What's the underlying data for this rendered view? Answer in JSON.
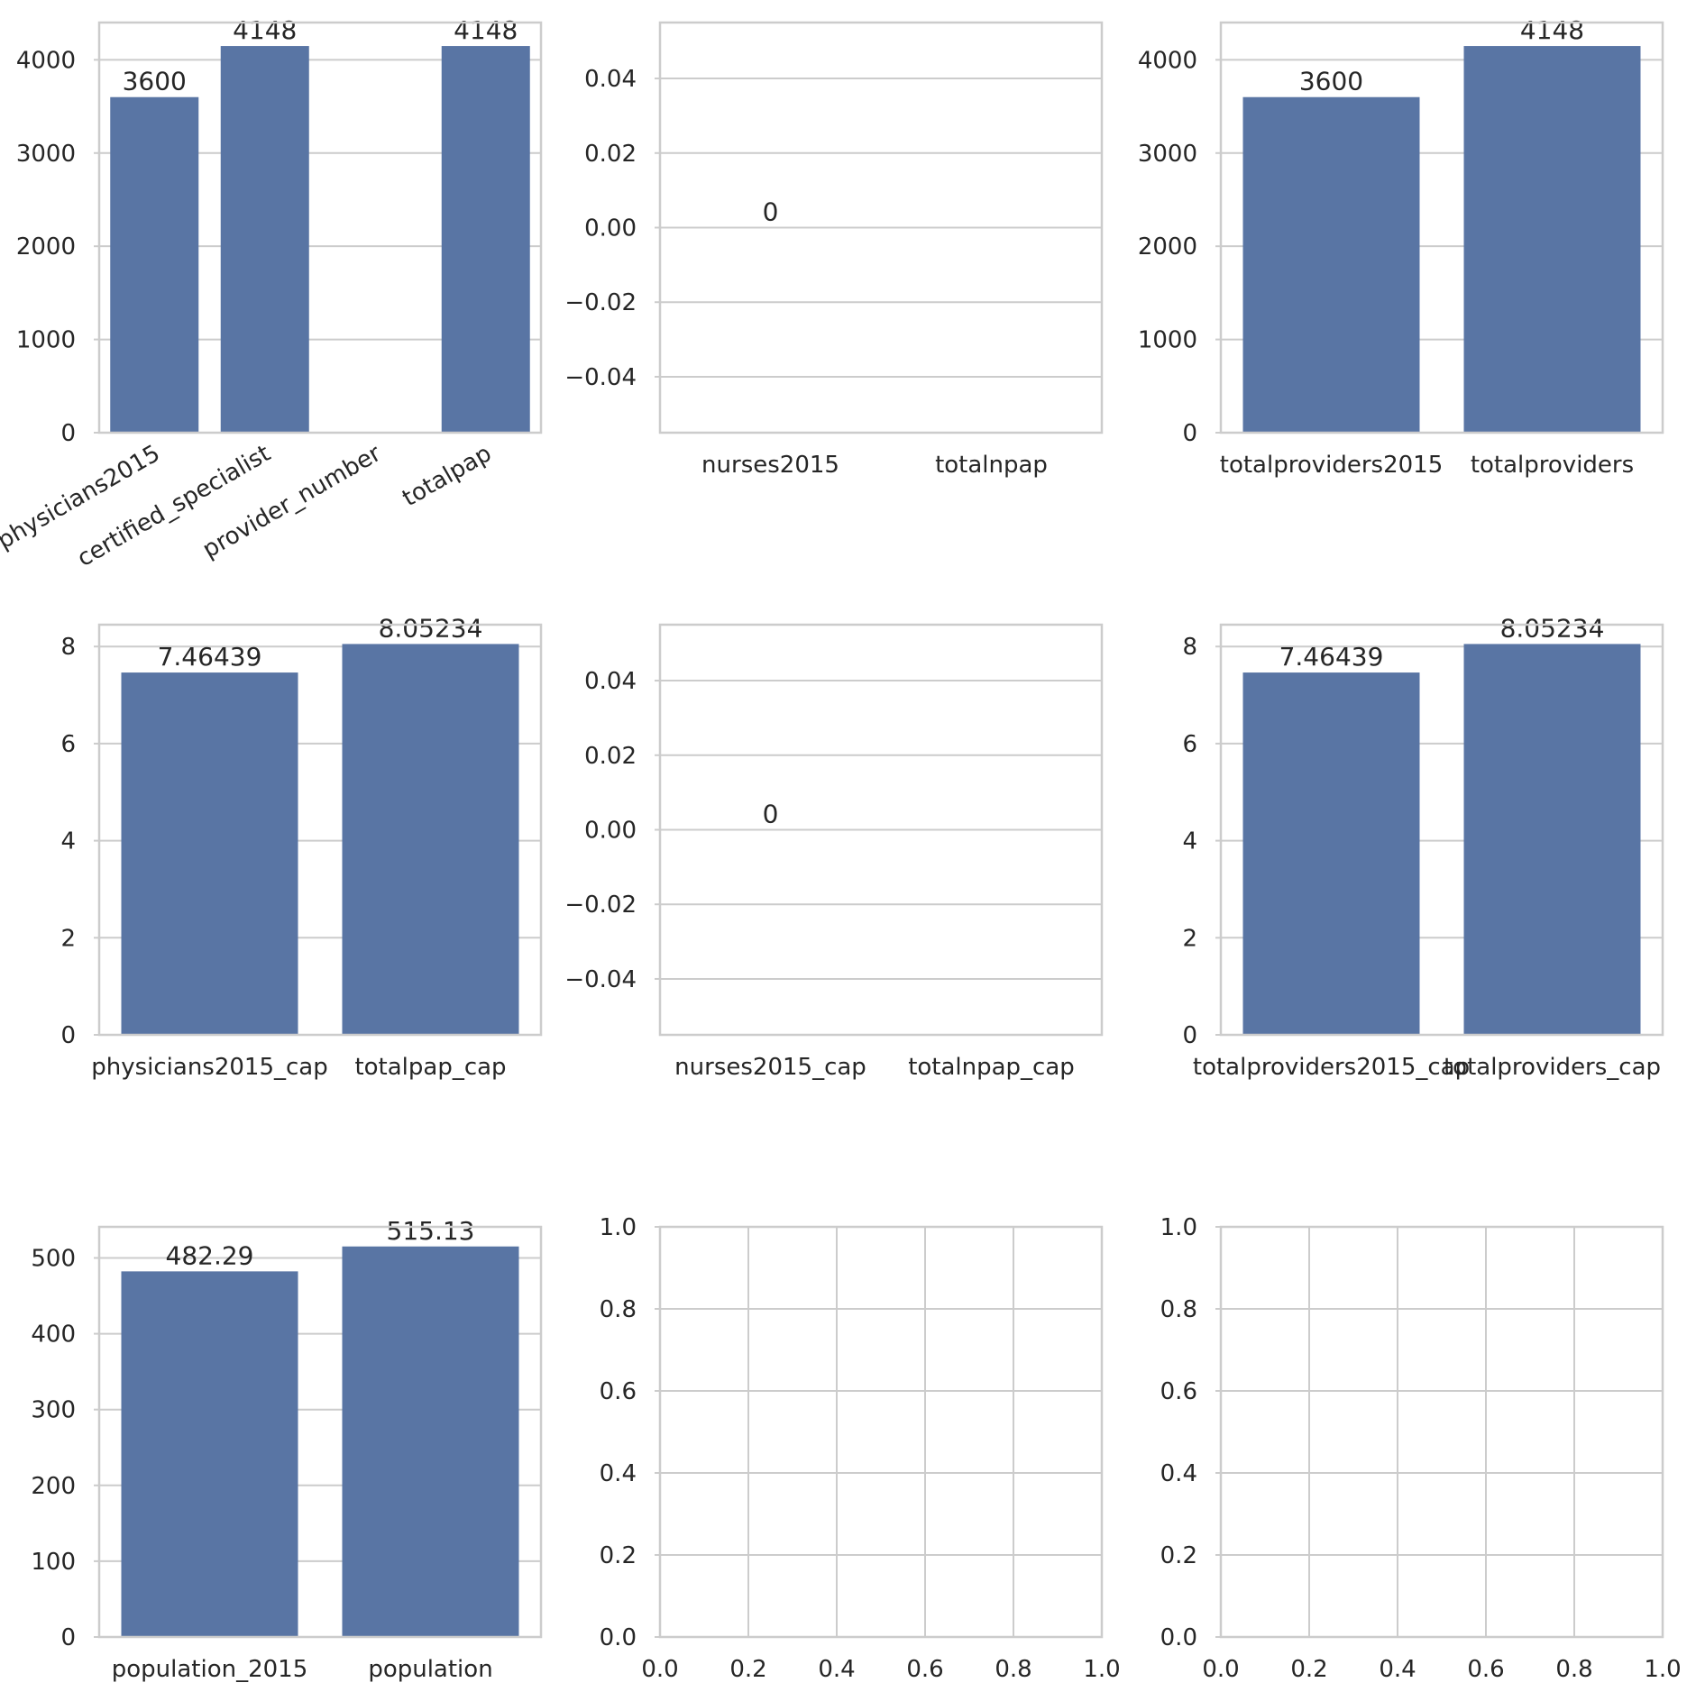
{
  "chart_data": [
    {
      "type": "bar",
      "categories": [
        "physicians2015",
        "certified_specialist",
        "provider_number",
        "totalpap"
      ],
      "values": [
        3600,
        4148,
        null,
        4148
      ],
      "value_labels": [
        "3600",
        "4148",
        "",
        "4148"
      ],
      "ylim": [
        0,
        4400
      ],
      "yticks": [
        0,
        1000,
        2000,
        3000,
        4000
      ],
      "ytick_labels": [
        "0",
        "1000",
        "2000",
        "3000",
        "4000"
      ],
      "xtick_rotation": 30,
      "grid": "horizontal",
      "bar_color": "#5975a4"
    },
    {
      "type": "bar",
      "categories": [
        "nurses2015",
        "totalnpap"
      ],
      "values": [
        0,
        null
      ],
      "value_labels": [
        "0",
        ""
      ],
      "ylim": [
        -0.055,
        0.055
      ],
      "yticks": [
        -0.04,
        -0.02,
        0.0,
        0.02,
        0.04
      ],
      "ytick_labels": [
        "−0.04",
        "−0.02",
        "0.00",
        "0.02",
        "0.04"
      ],
      "grid": "horizontal",
      "bar_color": "#5975a4"
    },
    {
      "type": "bar",
      "categories": [
        "totalproviders2015",
        "totalproviders"
      ],
      "values": [
        3600,
        4148
      ],
      "value_labels": [
        "3600",
        "4148"
      ],
      "ylim": [
        0,
        4400
      ],
      "yticks": [
        0,
        1000,
        2000,
        3000,
        4000
      ],
      "ytick_labels": [
        "0",
        "1000",
        "2000",
        "3000",
        "4000"
      ],
      "grid": "horizontal",
      "bar_color": "#5975a4"
    },
    {
      "type": "bar",
      "categories": [
        "physicians2015_cap",
        "totalpap_cap"
      ],
      "values": [
        7.46439,
        8.05234
      ],
      "value_labels": [
        "7.46439",
        "8.05234"
      ],
      "ylim": [
        0,
        8.45
      ],
      "yticks": [
        0,
        2,
        4,
        6,
        8
      ],
      "ytick_labels": [
        "0",
        "2",
        "4",
        "6",
        "8"
      ],
      "grid": "horizontal",
      "bar_color": "#5975a4"
    },
    {
      "type": "bar",
      "categories": [
        "nurses2015_cap",
        "totalnpap_cap"
      ],
      "values": [
        0,
        null
      ],
      "value_labels": [
        "0",
        ""
      ],
      "ylim": [
        -0.055,
        0.055
      ],
      "yticks": [
        -0.04,
        -0.02,
        0.0,
        0.02,
        0.04
      ],
      "ytick_labels": [
        "−0.04",
        "−0.02",
        "0.00",
        "0.02",
        "0.04"
      ],
      "grid": "horizontal",
      "bar_color": "#5975a4"
    },
    {
      "type": "bar",
      "categories": [
        "totalproviders2015_cap",
        "totalproviders_cap"
      ],
      "values": [
        7.46439,
        8.05234
      ],
      "value_labels": [
        "7.46439",
        "8.05234"
      ],
      "ylim": [
        0,
        8.45
      ],
      "yticks": [
        0,
        2,
        4,
        6,
        8
      ],
      "ytick_labels": [
        "0",
        "2",
        "4",
        "6",
        "8"
      ],
      "grid": "horizontal",
      "bar_color": "#5975a4"
    },
    {
      "type": "bar",
      "categories": [
        "population_2015",
        "population"
      ],
      "values": [
        482.29,
        515.13
      ],
      "value_labels": [
        "482.29",
        "515.13"
      ],
      "ylim": [
        0,
        541
      ],
      "yticks": [
        0,
        100,
        200,
        300,
        400,
        500
      ],
      "ytick_labels": [
        "0",
        "100",
        "200",
        "300",
        "400",
        "500"
      ],
      "grid": "horizontal",
      "bar_color": "#5975a4"
    },
    {
      "type": "empty",
      "xlim": [
        0,
        1
      ],
      "ylim": [
        0,
        1
      ],
      "xticks": [
        0,
        0.2,
        0.4,
        0.6,
        0.8,
        1.0
      ],
      "xtick_labels": [
        "0.0",
        "0.2",
        "0.4",
        "0.6",
        "0.8",
        "1.0"
      ],
      "yticks": [
        0,
        0.2,
        0.4,
        0.6,
        0.8,
        1.0
      ],
      "ytick_labels": [
        "0.0",
        "0.2",
        "0.4",
        "0.6",
        "0.8",
        "1.0"
      ],
      "grid": "both"
    },
    {
      "type": "empty",
      "xlim": [
        0,
        1
      ],
      "ylim": [
        0,
        1
      ],
      "xticks": [
        0,
        0.2,
        0.4,
        0.6,
        0.8,
        1.0
      ],
      "xtick_labels": [
        "0.0",
        "0.2",
        "0.4",
        "0.6",
        "0.8",
        "1.0"
      ],
      "yticks": [
        0,
        0.2,
        0.4,
        0.6,
        0.8,
        1.0
      ],
      "ytick_labels": [
        "0.0",
        "0.2",
        "0.4",
        "0.6",
        "0.8",
        "1.0"
      ],
      "grid": "both"
    }
  ]
}
